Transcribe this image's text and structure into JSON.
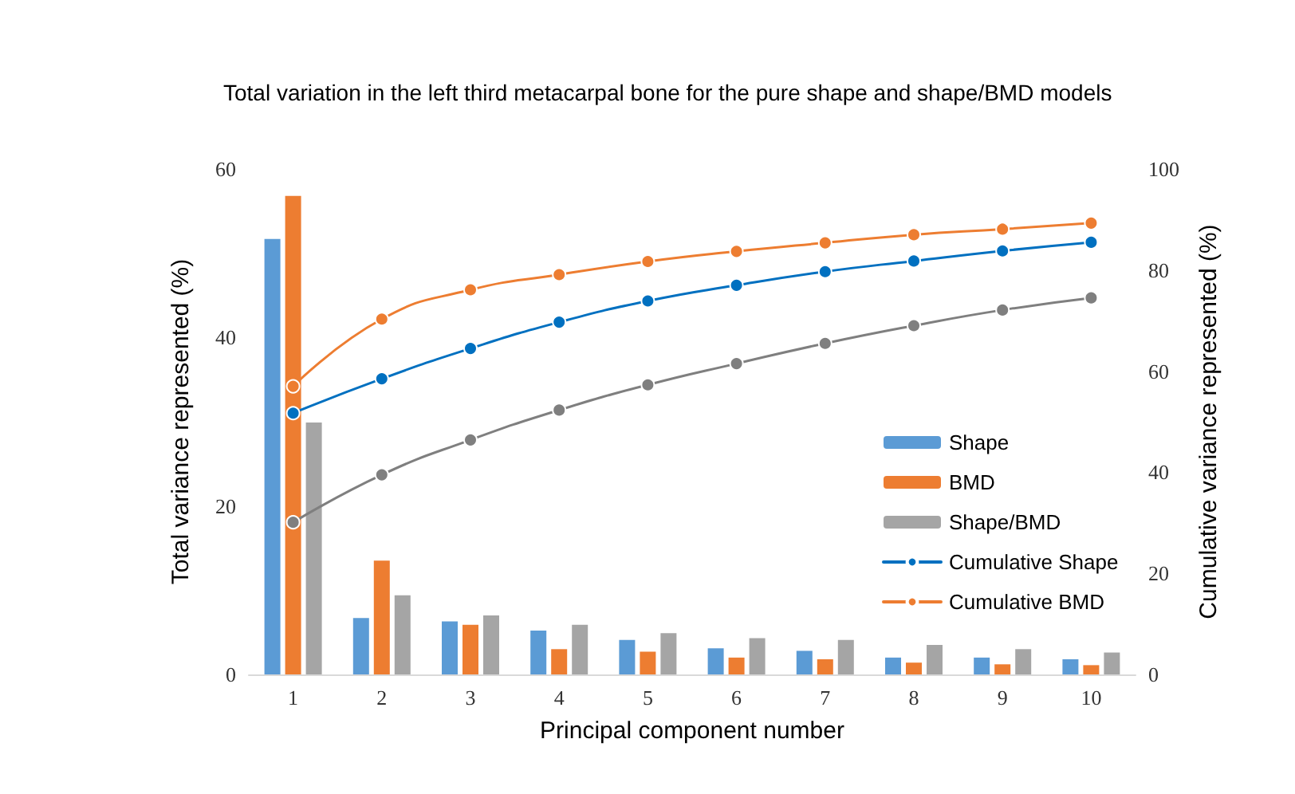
{
  "chart_data": {
    "type": "bar",
    "title": "Total variation in the left third metacarpal bone for the pure shape and shape/BMD models",
    "xlabel": "Principal component number",
    "ylabel": "Total variance represented (%)",
    "y2label": "Cumulative variance represented (%)",
    "categories": [
      "1",
      "2",
      "3",
      "4",
      "5",
      "6",
      "7",
      "8",
      "9",
      "10"
    ],
    "series": [
      {
        "name": "Shape",
        "color": "#5b9bd5",
        "values": [
          51.7,
          6.7,
          6.3,
          5.2,
          4.1,
          3.1,
          2.8,
          2.0,
          2.0,
          1.8
        ]
      },
      {
        "name": "BMD",
        "color": "#ed7d31",
        "values": [
          56.8,
          13.5,
          5.9,
          3.0,
          2.7,
          2.0,
          1.8,
          1.4,
          1.2,
          1.1
        ]
      },
      {
        "name": "Shape/BMD",
        "color": "#a5a5a5",
        "values": [
          29.9,
          9.4,
          7.0,
          5.9,
          4.9,
          4.3,
          4.1,
          3.5,
          3.0,
          2.6
        ]
      },
      {
        "name": "Cumulative Shape",
        "type": "line",
        "axis": "y2",
        "color": "#0070c0",
        "values": [
          51.7,
          58.5,
          64.5,
          69.7,
          73.9,
          77.0,
          79.7,
          81.8,
          83.8,
          85.5
        ]
      },
      {
        "name": "Cumulative BMD",
        "type": "line",
        "axis": "y2",
        "color": "#ed7d31",
        "values": [
          57.0,
          70.3,
          76.1,
          79.1,
          81.7,
          83.7,
          85.4,
          87.0,
          88.1,
          89.3
        ]
      },
      {
        "type": "line",
        "axis": "y2",
        "color": "#7f7f7f",
        "values": [
          30.1,
          39.5,
          46.4,
          52.3,
          57.3,
          61.5,
          65.5,
          69.0,
          72.1,
          74.5
        ]
      }
    ],
    "ylim": [
      0,
      60
    ],
    "yticks": [
      0,
      20,
      40,
      60
    ],
    "y2lim": [
      0,
      100
    ],
    "y2ticks": [
      0,
      20,
      40,
      60,
      80,
      100
    ],
    "legend": "right",
    "marker": "circle",
    "line_style": "solid",
    "grid": false
  }
}
